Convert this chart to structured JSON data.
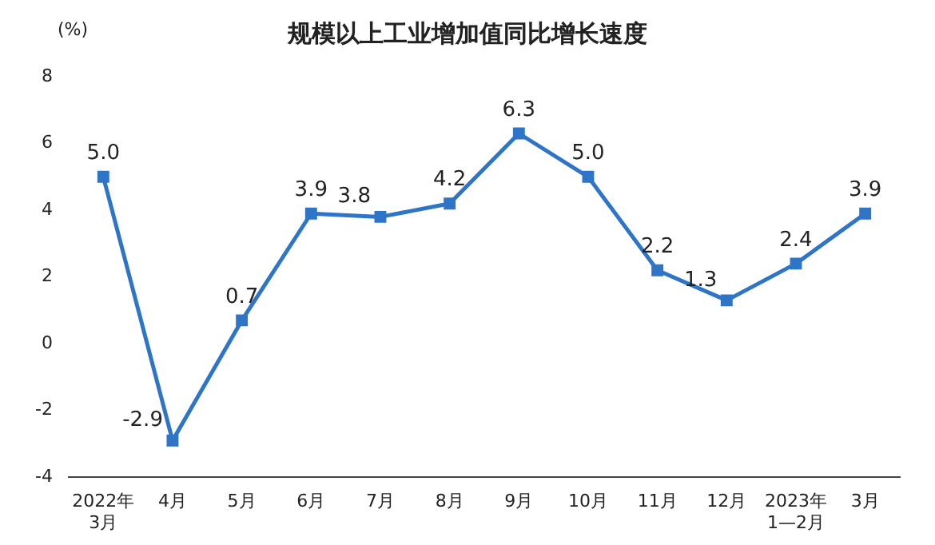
{
  "chart_data": {
    "type": "line",
    "title": "规模以上工业增加值同比增长速度",
    "ylabel": "(%)",
    "categories": [
      "2022年\n3月",
      "4月",
      "5月",
      "6月",
      "7月",
      "8月",
      "9月",
      "10月",
      "11月",
      "12月",
      "2023年\n1—2月",
      "3月"
    ],
    "series": [
      {
        "color": "#2e75c8",
        "values": [
          5.0,
          -2.9,
          0.7,
          3.9,
          3.8,
          4.2,
          6.3,
          5.0,
          2.2,
          1.3,
          2.4,
          3.9
        ],
        "value_labels": [
          "5.0",
          "-2.9",
          "0.7",
          "3.9",
          "3.8",
          "4.2",
          "6.3",
          "5.0",
          "2.2",
          "1.3",
          "2.4",
          "3.9"
        ]
      }
    ],
    "ylim": [
      -4,
      8
    ],
    "yticks": [
      -4,
      -2,
      0,
      2,
      4,
      6,
      8
    ],
    "grid": false,
    "legend": false,
    "marker": "square",
    "line_style": "solid"
  }
}
